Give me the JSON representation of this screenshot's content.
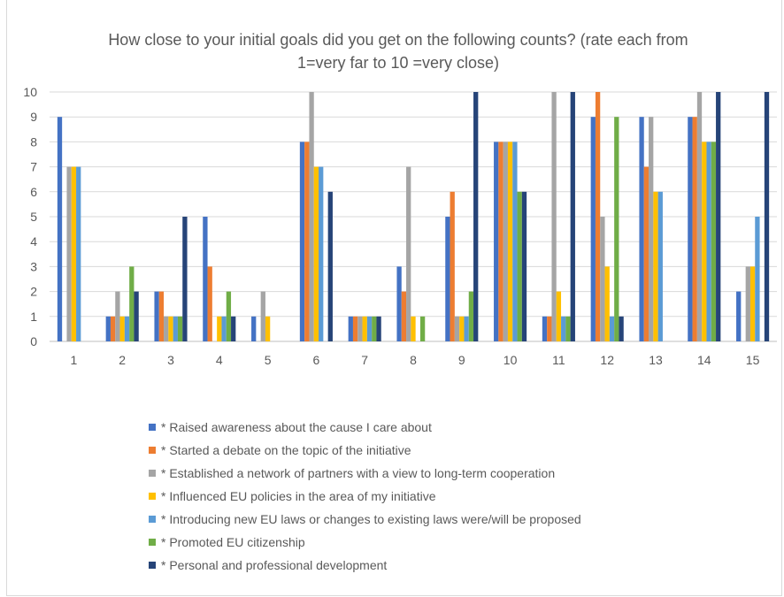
{
  "chart_data": {
    "type": "bar",
    "title": "How close to your initial goals did you get on the following counts? (rate each from 1=very far to 10 =very close)",
    "title_lines": [
      "How close to your initial goals did you get on the following counts? (rate each from",
      "1=very far to 10 =very close)"
    ],
    "xlabel": "",
    "ylabel": "",
    "ylim": [
      0,
      10
    ],
    "yticks": [
      "0",
      "1",
      "2",
      "3",
      "4",
      "5",
      "6",
      "7",
      "8",
      "9",
      "10"
    ],
    "grid": true,
    "legend_position": "bottom",
    "categories": [
      "1",
      "2",
      "3",
      "4",
      "5",
      "6",
      "7",
      "8",
      "9",
      "10",
      "11",
      "12",
      "13",
      "14",
      "15"
    ],
    "series": [
      {
        "name": "* Raised awareness about the cause I care about",
        "color": "#4472c4",
        "values": [
          9,
          1,
          2,
          5,
          1,
          8,
          1,
          3,
          5,
          8,
          1,
          9,
          9,
          9,
          2
        ]
      },
      {
        "name": "* Started a debate on the topic of the initiative",
        "color": "#ed7d31",
        "values": [
          0,
          1,
          2,
          3,
          0,
          8,
          1,
          2,
          6,
          8,
          1,
          10,
          7,
          9,
          0
        ]
      },
      {
        "name": "* Established a network of partners with a view to long-term cooperation",
        "color": "#a5a5a5",
        "values": [
          7,
          2,
          1,
          0,
          2,
          10,
          1,
          7,
          1,
          8,
          10,
          5,
          9,
          10,
          3
        ]
      },
      {
        "name": "* Influenced EU policies in the area of my initiative",
        "color": "#ffc000",
        "values": [
          7,
          1,
          1,
          1,
          1,
          7,
          1,
          1,
          1,
          8,
          2,
          3,
          6,
          8,
          3
        ]
      },
      {
        "name": "* Introducing new EU laws or changes to existing laws were/will be proposed",
        "color": "#5b9bd5",
        "values": [
          7,
          1,
          1,
          1,
          0,
          7,
          1,
          0,
          1,
          8,
          1,
          1,
          6,
          8,
          5
        ]
      },
      {
        "name": "* Promoted EU citizenship",
        "color": "#70ad47",
        "values": [
          0,
          3,
          1,
          2,
          0,
          0,
          1,
          1,
          2,
          6,
          1,
          9,
          0,
          8,
          0
        ]
      },
      {
        "name": "* Personal and professional development",
        "color": "#264478",
        "values": [
          0,
          2,
          5,
          1,
          0,
          6,
          1,
          0,
          10,
          6,
          10,
          1,
          0,
          10,
          10
        ]
      }
    ]
  }
}
